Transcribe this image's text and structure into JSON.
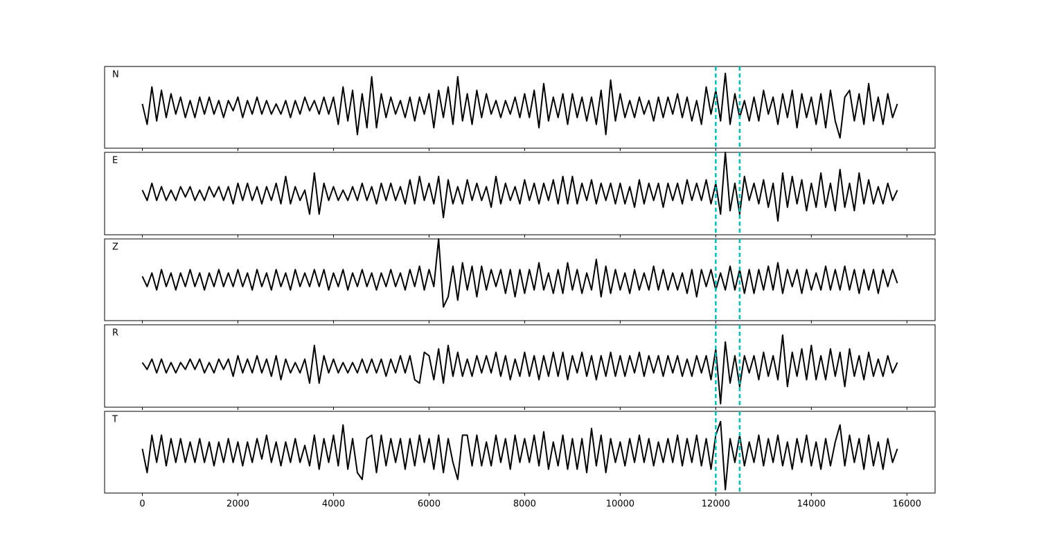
{
  "chart_data": {
    "type": "line",
    "x": [
      0,
      100,
      200,
      300,
      400,
      500,
      600,
      700,
      800,
      900,
      1000,
      1100,
      1200,
      1300,
      1400,
      1500,
      1600,
      1700,
      1800,
      1900,
      2000,
      2100,
      2200,
      2300,
      2400,
      2500,
      2600,
      2700,
      2800,
      2900,
      3000,
      3100,
      3200,
      3300,
      3400,
      3500,
      3600,
      3700,
      3800,
      3900,
      4000,
      4100,
      4200,
      4300,
      4400,
      4500,
      4600,
      4700,
      4800,
      4900,
      5000,
      5100,
      5200,
      5300,
      5400,
      5500,
      5600,
      5700,
      5800,
      5900,
      6000,
      6100,
      6200,
      6300,
      6400,
      6500,
      6600,
      6700,
      6800,
      6900,
      7000,
      7100,
      7200,
      7300,
      7400,
      7500,
      7600,
      7700,
      7800,
      7900,
      8000,
      8100,
      8200,
      8300,
      8400,
      8500,
      8600,
      8700,
      8800,
      8900,
      9000,
      9100,
      9200,
      9300,
      9400,
      9500,
      9600,
      9700,
      9800,
      9900,
      10000,
      10100,
      10200,
      10300,
      10400,
      10500,
      10600,
      10700,
      10800,
      10900,
      11000,
      11100,
      11200,
      11300,
      11400,
      11500,
      11600,
      11700,
      11800,
      11900,
      12000,
      12100,
      12200,
      12300,
      12400,
      12500,
      12600,
      12700,
      12800,
      12900,
      13000,
      13100,
      13200,
      13300,
      13400,
      13500,
      13600,
      13700,
      13800,
      13900,
      14000,
      14100,
      14200,
      14300,
      14400,
      14500,
      14600,
      14700,
      14800,
      14900,
      15000,
      15100,
      15200,
      15300,
      15400,
      15500,
      15600,
      15700,
      15800
    ],
    "series": [
      {
        "name": "N",
        "color": "#000000",
        "values": [
          1,
          -5,
          6,
          -4,
          5,
          -3,
          4,
          -2,
          3,
          -3,
          2,
          -3,
          3,
          -2,
          3,
          -2,
          2,
          -3,
          2,
          -1,
          3,
          -3,
          2,
          -2,
          3,
          -2,
          2,
          -2,
          1,
          -2,
          2,
          -3,
          2,
          -2,
          3,
          -1,
          2,
          -2,
          3,
          -2,
          3,
          -5,
          6,
          -4,
          5,
          -8,
          4,
          -6,
          9,
          -6,
          4,
          -3,
          3,
          -2,
          2,
          -3,
          3,
          -4,
          3,
          -2,
          4,
          -6,
          5,
          -3,
          6,
          -5,
          9,
          -4,
          4,
          -5,
          5,
          -3,
          4,
          -2,
          2,
          -3,
          2,
          -2,
          3,
          -3,
          4,
          -3,
          5,
          -6,
          7,
          -4,
          3,
          -3,
          4,
          -5,
          4,
          -3,
          3,
          -4,
          3,
          -5,
          5,
          -8,
          8,
          -4,
          4,
          -3,
          2,
          -3,
          3,
          -2,
          2,
          -4,
          3,
          -3,
          3,
          -2,
          4,
          -3,
          3,
          -4,
          2,
          -5,
          6,
          -2,
          5,
          -4,
          10,
          -5,
          4,
          -3,
          2,
          -4,
          3,
          -4,
          5,
          -2,
          3,
          -5,
          4,
          -3,
          5,
          -6,
          4,
          -3,
          3,
          -5,
          4,
          -6,
          5,
          -4,
          -9,
          3,
          5,
          -4,
          4,
          -5,
          7,
          -4,
          3,
          -5,
          4,
          -3,
          1
        ]
      },
      {
        "name": "E",
        "color": "#000000",
        "values": [
          1,
          -2,
          3,
          -2,
          2,
          -2,
          1,
          -2,
          2,
          -1,
          2,
          -2,
          1,
          -2,
          2,
          -1,
          2,
          -2,
          2,
          -3,
          3,
          -2,
          3,
          -2,
          2,
          -3,
          2,
          -2,
          3,
          -3,
          5,
          -3,
          2,
          -2,
          1,
          -6,
          6,
          -6,
          3,
          -2,
          2,
          -2,
          1,
          -2,
          2,
          -2,
          3,
          -2,
          2,
          -3,
          3,
          -2,
          3,
          -2,
          2,
          -3,
          4,
          -3,
          5,
          -2,
          3,
          -3,
          5,
          -7,
          4,
          -3,
          2,
          -3,
          4,
          -2,
          3,
          -2,
          2,
          -4,
          5,
          -3,
          3,
          -2,
          2,
          -3,
          4,
          -2,
          3,
          -3,
          3,
          -2,
          4,
          -3,
          5,
          -3,
          5,
          -3,
          3,
          -2,
          4,
          -3,
          3,
          -2,
          3,
          -3,
          3,
          -3,
          2,
          -4,
          4,
          -3,
          3,
          -2,
          3,
          -4,
          3,
          -2,
          3,
          -3,
          4,
          -2,
          3,
          -2,
          4,
          -3,
          3,
          -6,
          12,
          -5,
          3,
          -6,
          5,
          -2,
          3,
          -3,
          4,
          -4,
          3,
          -8,
          6,
          -4,
          5,
          -3,
          4,
          -5,
          3,
          -4,
          6,
          -4,
          3,
          -5,
          7,
          -4,
          3,
          -5,
          6,
          -3,
          4,
          -3,
          2,
          -3,
          3,
          -2,
          1
        ]
      },
      {
        "name": "Z",
        "color": "#000000",
        "values": [
          1,
          -2,
          2,
          -3,
          3,
          -2,
          2,
          -3,
          2,
          -2,
          3,
          -2,
          2,
          -3,
          2,
          -2,
          3,
          -2,
          2,
          -2,
          3,
          -2,
          2,
          -3,
          3,
          -2,
          2,
          -3,
          3,
          -2,
          2,
          -3,
          3,
          -2,
          2,
          -2,
          3,
          -2,
          3,
          -3,
          2,
          -2,
          3,
          -3,
          2,
          -2,
          3,
          -2,
          2,
          -3,
          2,
          -2,
          3,
          -2,
          2,
          -3,
          3,
          -2,
          4,
          -3,
          3,
          -2,
          12,
          -8,
          -5,
          4,
          -6,
          5,
          -3,
          4,
          -5,
          4,
          -3,
          3,
          -2,
          3,
          -4,
          3,
          -5,
          3,
          -4,
          3,
          -3,
          5,
          -3,
          2,
          -4,
          3,
          -4,
          5,
          -3,
          3,
          -4,
          2,
          -3,
          6,
          -5,
          4,
          -4,
          3,
          -3,
          2,
          -4,
          3,
          -3,
          2,
          -3,
          4,
          -3,
          3,
          -3,
          2,
          -3,
          2,
          -4,
          3,
          -5,
          3,
          -2,
          3,
          -3,
          2,
          -3,
          4,
          -3,
          3,
          -4,
          3,
          -4,
          3,
          -3,
          4,
          -3,
          5,
          -4,
          3,
          -2,
          3,
          -4,
          3,
          -3,
          2,
          -3,
          4,
          -3,
          3,
          -3,
          4,
          -3,
          3,
          -4,
          3,
          -3,
          3,
          -4,
          3,
          -2,
          3,
          -1
        ]
      },
      {
        "name": "R",
        "color": "#000000",
        "values": [
          1,
          -1,
          2,
          -2,
          2,
          -2,
          1,
          -2,
          1,
          -1,
          2,
          -1,
          2,
          -2,
          1,
          -2,
          2,
          -1,
          2,
          -3,
          3,
          -2,
          2,
          -2,
          3,
          -2,
          2,
          -3,
          3,
          -4,
          2,
          -2,
          1,
          -2,
          2,
          -5,
          6,
          -5,
          3,
          -2,
          2,
          -2,
          1,
          -2,
          1,
          -2,
          2,
          -2,
          2,
          -2,
          2,
          -3,
          2,
          -2,
          3,
          -2,
          3,
          -4,
          -5,
          4,
          3,
          -4,
          5,
          -5,
          6,
          -3,
          4,
          -3,
          2,
          -3,
          3,
          -2,
          3,
          -2,
          4,
          -3,
          3,
          -4,
          2,
          -3,
          4,
          -3,
          3,
          -4,
          3,
          -3,
          4,
          -3,
          4,
          -4,
          3,
          -2,
          4,
          -3,
          3,
          -4,
          3,
          -3,
          4,
          -3,
          3,
          -3,
          3,
          -2,
          4,
          -3,
          3,
          -2,
          3,
          -3,
          3,
          -2,
          3,
          -3,
          2,
          -3,
          3,
          -2,
          3,
          -4,
          5,
          -11,
          7,
          -5,
          3,
          -6,
          3,
          -2,
          3,
          -4,
          4,
          -3,
          3,
          -4,
          9,
          -6,
          4,
          -3,
          5,
          -4,
          6,
          -4,
          3,
          -4,
          5,
          -3,
          4,
          -6,
          5,
          -3,
          3,
          -4,
          4,
          -3,
          2,
          -3,
          3,
          -2,
          1
        ]
      },
      {
        "name": "T",
        "color": "#000000",
        "values": [
          1,
          -6,
          5,
          -3,
          5,
          -4,
          4,
          -3,
          4,
          -3,
          3,
          -3,
          4,
          -3,
          3,
          -4,
          3,
          -3,
          4,
          -3,
          3,
          -4,
          3,
          -3,
          4,
          -2,
          5,
          -3,
          3,
          -4,
          3,
          -3,
          4,
          -3,
          2,
          -4,
          5,
          -5,
          4,
          -3,
          5,
          -4,
          8,
          -5,
          4,
          -6,
          -8,
          4,
          5,
          -6,
          5,
          -4,
          4,
          -3,
          4,
          -5,
          4,
          -4,
          5,
          -3,
          4,
          -5,
          5,
          -6,
          4,
          -3,
          -8,
          5,
          5,
          -4,
          5,
          -4,
          3,
          -4,
          5,
          -3,
          4,
          -5,
          5,
          -3,
          4,
          -3,
          5,
          -4,
          6,
          -5,
          3,
          -4,
          5,
          -5,
          4,
          -5,
          4,
          -6,
          7,
          -4,
          5,
          -6,
          4,
          -3,
          3,
          -4,
          4,
          -3,
          5,
          -3,
          4,
          -4,
          3,
          -3,
          4,
          -3,
          5,
          -4,
          4,
          -3,
          5,
          -4,
          4,
          -5,
          5,
          9,
          -11,
          4,
          -3,
          5,
          -4,
          3,
          -3,
          5,
          -4,
          4,
          -3,
          5,
          -4,
          3,
          -5,
          4,
          -3,
          5,
          -4,
          3,
          -5,
          4,
          -4,
          3,
          8,
          -4,
          5,
          -3,
          4,
          -5,
          5,
          -4,
          3,
          -5,
          4,
          -3,
          1
        ]
      }
    ],
    "xlim": [
      -790,
      16590
    ],
    "xticks": [
      0,
      2000,
      4000,
      6000,
      8000,
      10000,
      12000,
      14000,
      16000
    ],
    "ylim": [
      -12,
      12
    ],
    "markers": [
      12000,
      12500
    ],
    "marker_color": "#00bfbf"
  }
}
